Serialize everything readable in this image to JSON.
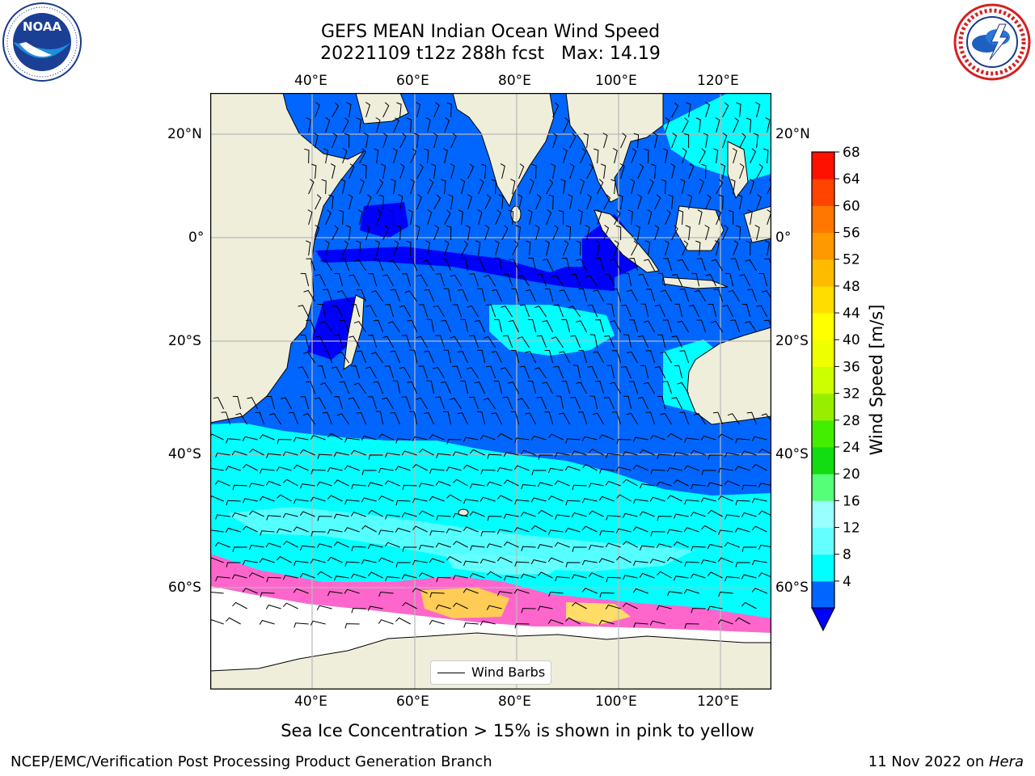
{
  "title_line1": "GEFS MEAN Indian Ocean Wind Speed",
  "title_line2": "20221109 t12z 288h fcst   Max: 14.19",
  "top_lon_ticks": [
    "40°E",
    "60°E",
    "80°E",
    "100°E",
    "120°E"
  ],
  "bottom_lon_ticks": [
    "40°E",
    "60°E",
    "80°E",
    "100°E",
    "120°E"
  ],
  "left_lat_ticks": [
    "20°N",
    "0°",
    "20°S",
    "40°S",
    "60°S"
  ],
  "right_lat_ticks": [
    "20°N",
    "0°",
    "20°S",
    "40°S",
    "60°S"
  ],
  "legend_label": "Wind Barbs",
  "colorbar": {
    "label": "Wind Speed [m/s]",
    "ticks": [
      "68",
      "64",
      "60",
      "56",
      "52",
      "48",
      "44",
      "40",
      "36",
      "32",
      "28",
      "24",
      "20",
      "16",
      "12",
      "8",
      "4"
    ],
    "colors": [
      "#0066ff",
      "#00ffff",
      "#66ffff",
      "#99ffff",
      "#55ff77",
      "#11dd11",
      "#44ee00",
      "#99ee00",
      "#ccff00",
      "#eeff00",
      "#ffff00",
      "#ffdd00",
      "#ffbb00",
      "#ff9900",
      "#ff7700",
      "#ff4400",
      "#ff1100"
    ],
    "under_color": "#0000ff"
  },
  "note": "Sea Ice Concentration > 15% is shown in pink to yellow",
  "footer_left": "NCEP/EMC/Verification Post Processing Product Generation Branch",
  "footer_right_date": "11 Nov 2022 on ",
  "footer_right_machine": "Hera",
  "logos": {
    "left": "noaa-logo",
    "right": "nws-logo"
  },
  "land_color": "#efeedb",
  "grid_color": "#b8b8b8"
}
